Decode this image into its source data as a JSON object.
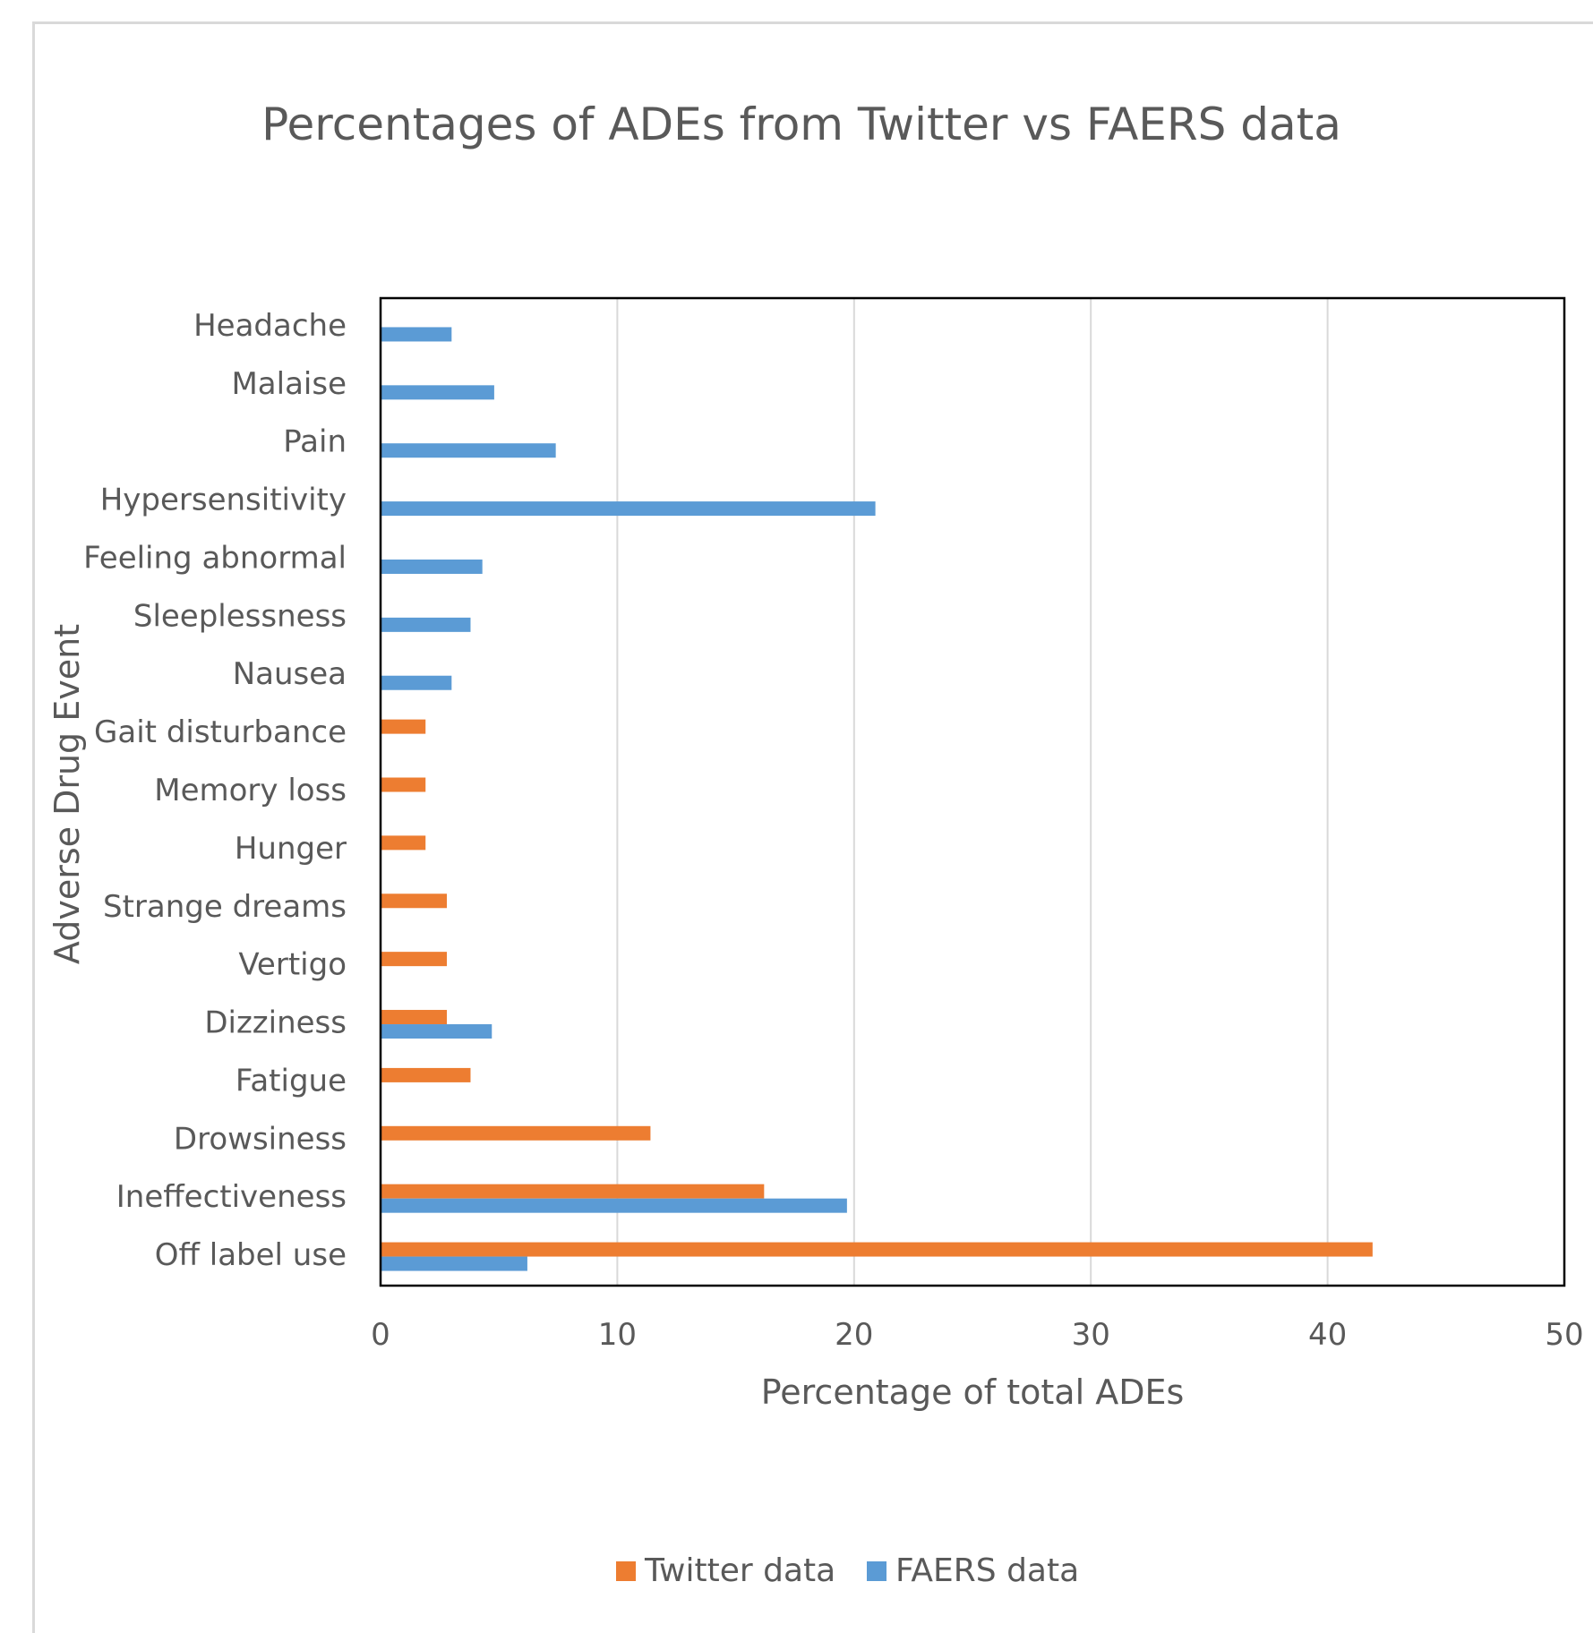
{
  "chart_data": {
    "type": "bar",
    "orientation": "horizontal",
    "title": "Percentages of ADEs from Twitter vs FAERS data",
    "xlabel": "Percentage of total ADEs",
    "ylabel": "Adverse Drug Event",
    "xlim": [
      0,
      50
    ],
    "xticks": [
      "0",
      "10",
      "20",
      "30",
      "40",
      "50"
    ],
    "grid": "vertical",
    "legend": "bottom",
    "categories": [
      "Headache",
      "Malaise",
      "Pain",
      "Hypersensitivity",
      "Feeling abnormal",
      "Sleeplessness",
      "Nausea",
      "Gait disturbance",
      "Memory loss",
      "Hunger",
      "Strange dreams",
      "Vertigo",
      "Dizziness",
      "Fatigue",
      "Drowsiness",
      "Ineffectiveness",
      "Off label use"
    ],
    "series": [
      {
        "name": "Twitter data",
        "color": "#ED7D31",
        "values": [
          0,
          0,
          0,
          0,
          0,
          0,
          0,
          1.9,
          1.9,
          1.9,
          2.8,
          2.8,
          2.8,
          3.8,
          11.4,
          16.2,
          41.9
        ]
      },
      {
        "name": "FAERS data",
        "color": "#5B9BD5",
        "values": [
          3.0,
          4.8,
          7.4,
          20.9,
          4.3,
          3.8,
          3.0,
          0,
          0,
          0,
          0,
          0,
          4.7,
          0,
          0,
          19.7,
          6.2
        ]
      }
    ]
  }
}
